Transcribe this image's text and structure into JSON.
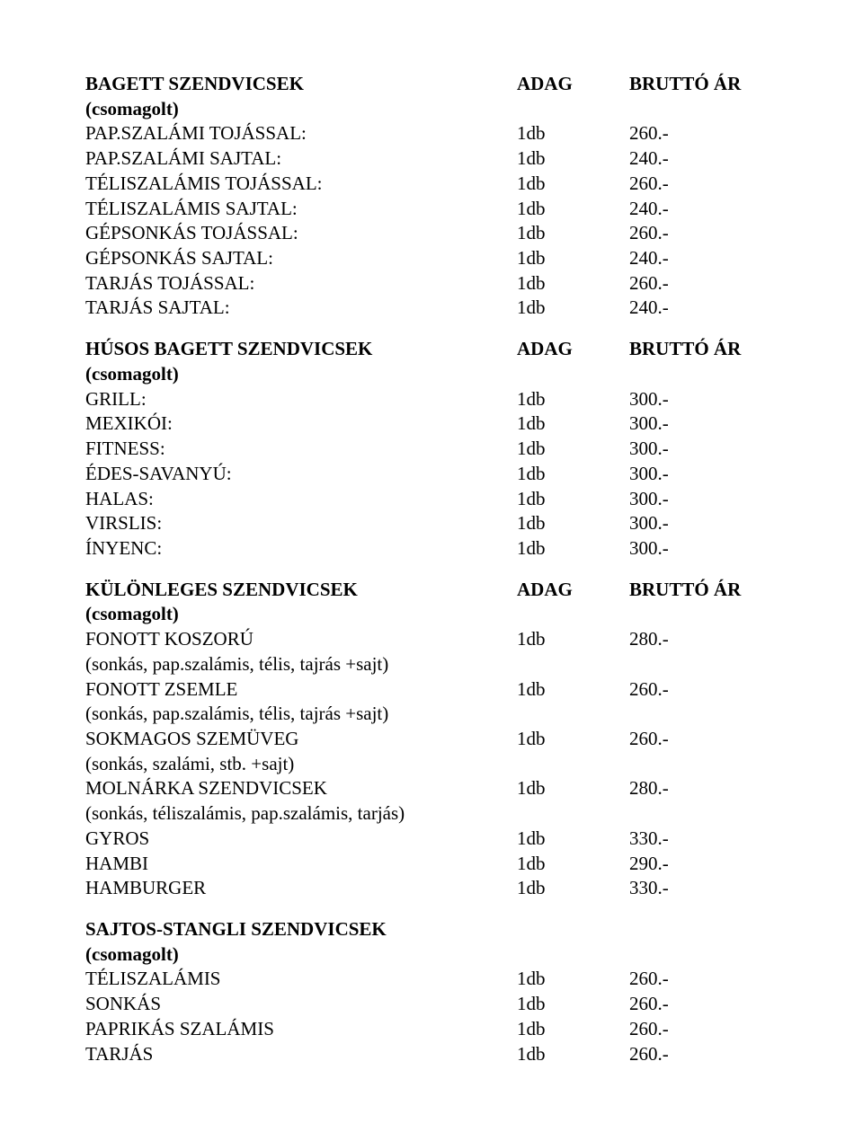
{
  "sections": [
    {
      "header": {
        "name": "BAGETT SZENDVICSEK",
        "qty": "ADAG",
        "price": "BRUTTÓ ÁR"
      },
      "note": "(csomagolt)",
      "items": [
        {
          "name": "PAP.SZALÁMI TOJÁSSAL:",
          "qty": "1db",
          "price": "260.-"
        },
        {
          "name": "PAP.SZALÁMI SAJTAL:",
          "qty": "1db",
          "price": "240.-"
        },
        {
          "name": "TÉLISZALÁMIS TOJÁSSAL:",
          "qty": "1db",
          "price": "260.-"
        },
        {
          "name": "TÉLISZALÁMIS SAJTAL:",
          "qty": "1db",
          "price": "240.-"
        },
        {
          "name": "GÉPSONKÁS TOJÁSSAL:",
          "qty": "1db",
          "price": "260.-"
        },
        {
          "name": "GÉPSONKÁS SAJTAL:",
          "qty": "1db",
          "price": "240.-"
        },
        {
          "name": "TARJÁS TOJÁSSAL:",
          "qty": "1db",
          "price": "260.-"
        },
        {
          "name": "TARJÁS SAJTAL:",
          "qty": "1db",
          "price": "240.-"
        }
      ]
    },
    {
      "header": {
        "name": "HÚSOS BAGETT SZENDVICSEK",
        "qty": "ADAG",
        "price": "BRUTTÓ ÁR"
      },
      "note": "(csomagolt)",
      "items": [
        {
          "name": "GRILL:",
          "qty": "1db",
          "price": "300.-"
        },
        {
          "name": "MEXIKÓI:",
          "qty": "1db",
          "price": "300.-"
        },
        {
          "name": "FITNESS:",
          "qty": "1db",
          "price": "300.-"
        },
        {
          "name": "ÉDES-SAVANYÚ:",
          "qty": "1db",
          "price": "300.-"
        },
        {
          "name": "HALAS:",
          "qty": "1db",
          "price": "300.-"
        },
        {
          "name": "VIRSLIS:",
          "qty": "1db",
          "price": "300.-"
        },
        {
          "name": "ÍNYENC:",
          "qty": "1db",
          "price": "300.-"
        }
      ]
    },
    {
      "header": {
        "name": "KÜLÖNLEGES SZENDVICSEK",
        "qty": "ADAG",
        "price": "BRUTTÓ ÁR"
      },
      "note": "(csomagolt)",
      "items": [
        {
          "name": "FONOTT KOSZORÚ",
          "qty": "1db",
          "price": "280.-",
          "sub": "(sonkás, pap.szalámis, télis, tajrás +sajt)"
        },
        {
          "name": "FONOTT ZSEMLE",
          "qty": "1db",
          "price": "260.-",
          "sub": "(sonkás, pap.szalámis, télis, tajrás +sajt)"
        },
        {
          "name": "SOKMAGOS SZEMÜVEG",
          "qty": "1db",
          "price": "260.-",
          "sub": "(sonkás, szalámi, stb. +sajt)"
        },
        {
          "name": "MOLNÁRKA SZENDVICSEK",
          "qty": "1db",
          "price": "280.-",
          "sub": "(sonkás, téliszalámis, pap.szalámis, tarjás)"
        },
        {
          "name": "GYROS",
          "qty": "1db",
          "price": "330.-"
        },
        {
          "name": "HAMBI",
          "qty": "1db",
          "price": "290.-"
        },
        {
          "name": "HAMBURGER",
          "qty": "1db",
          "price": "330.-"
        }
      ]
    },
    {
      "header": {
        "name": "SAJTOS-STANGLI SZENDVICSEK"
      },
      "note": "(csomagolt)",
      "items": [
        {
          "name": "TÉLISZALÁMIS",
          "qty": "1db",
          "price": "260.-"
        },
        {
          "name": "SONKÁS",
          "qty": "1db",
          "price": "260.-"
        },
        {
          "name": "PAPRIKÁS SZALÁMIS",
          "qty": "1db",
          "price": "260.-"
        },
        {
          "name": "TARJÁS",
          "qty": "1db",
          "price": "260.-"
        }
      ]
    }
  ]
}
